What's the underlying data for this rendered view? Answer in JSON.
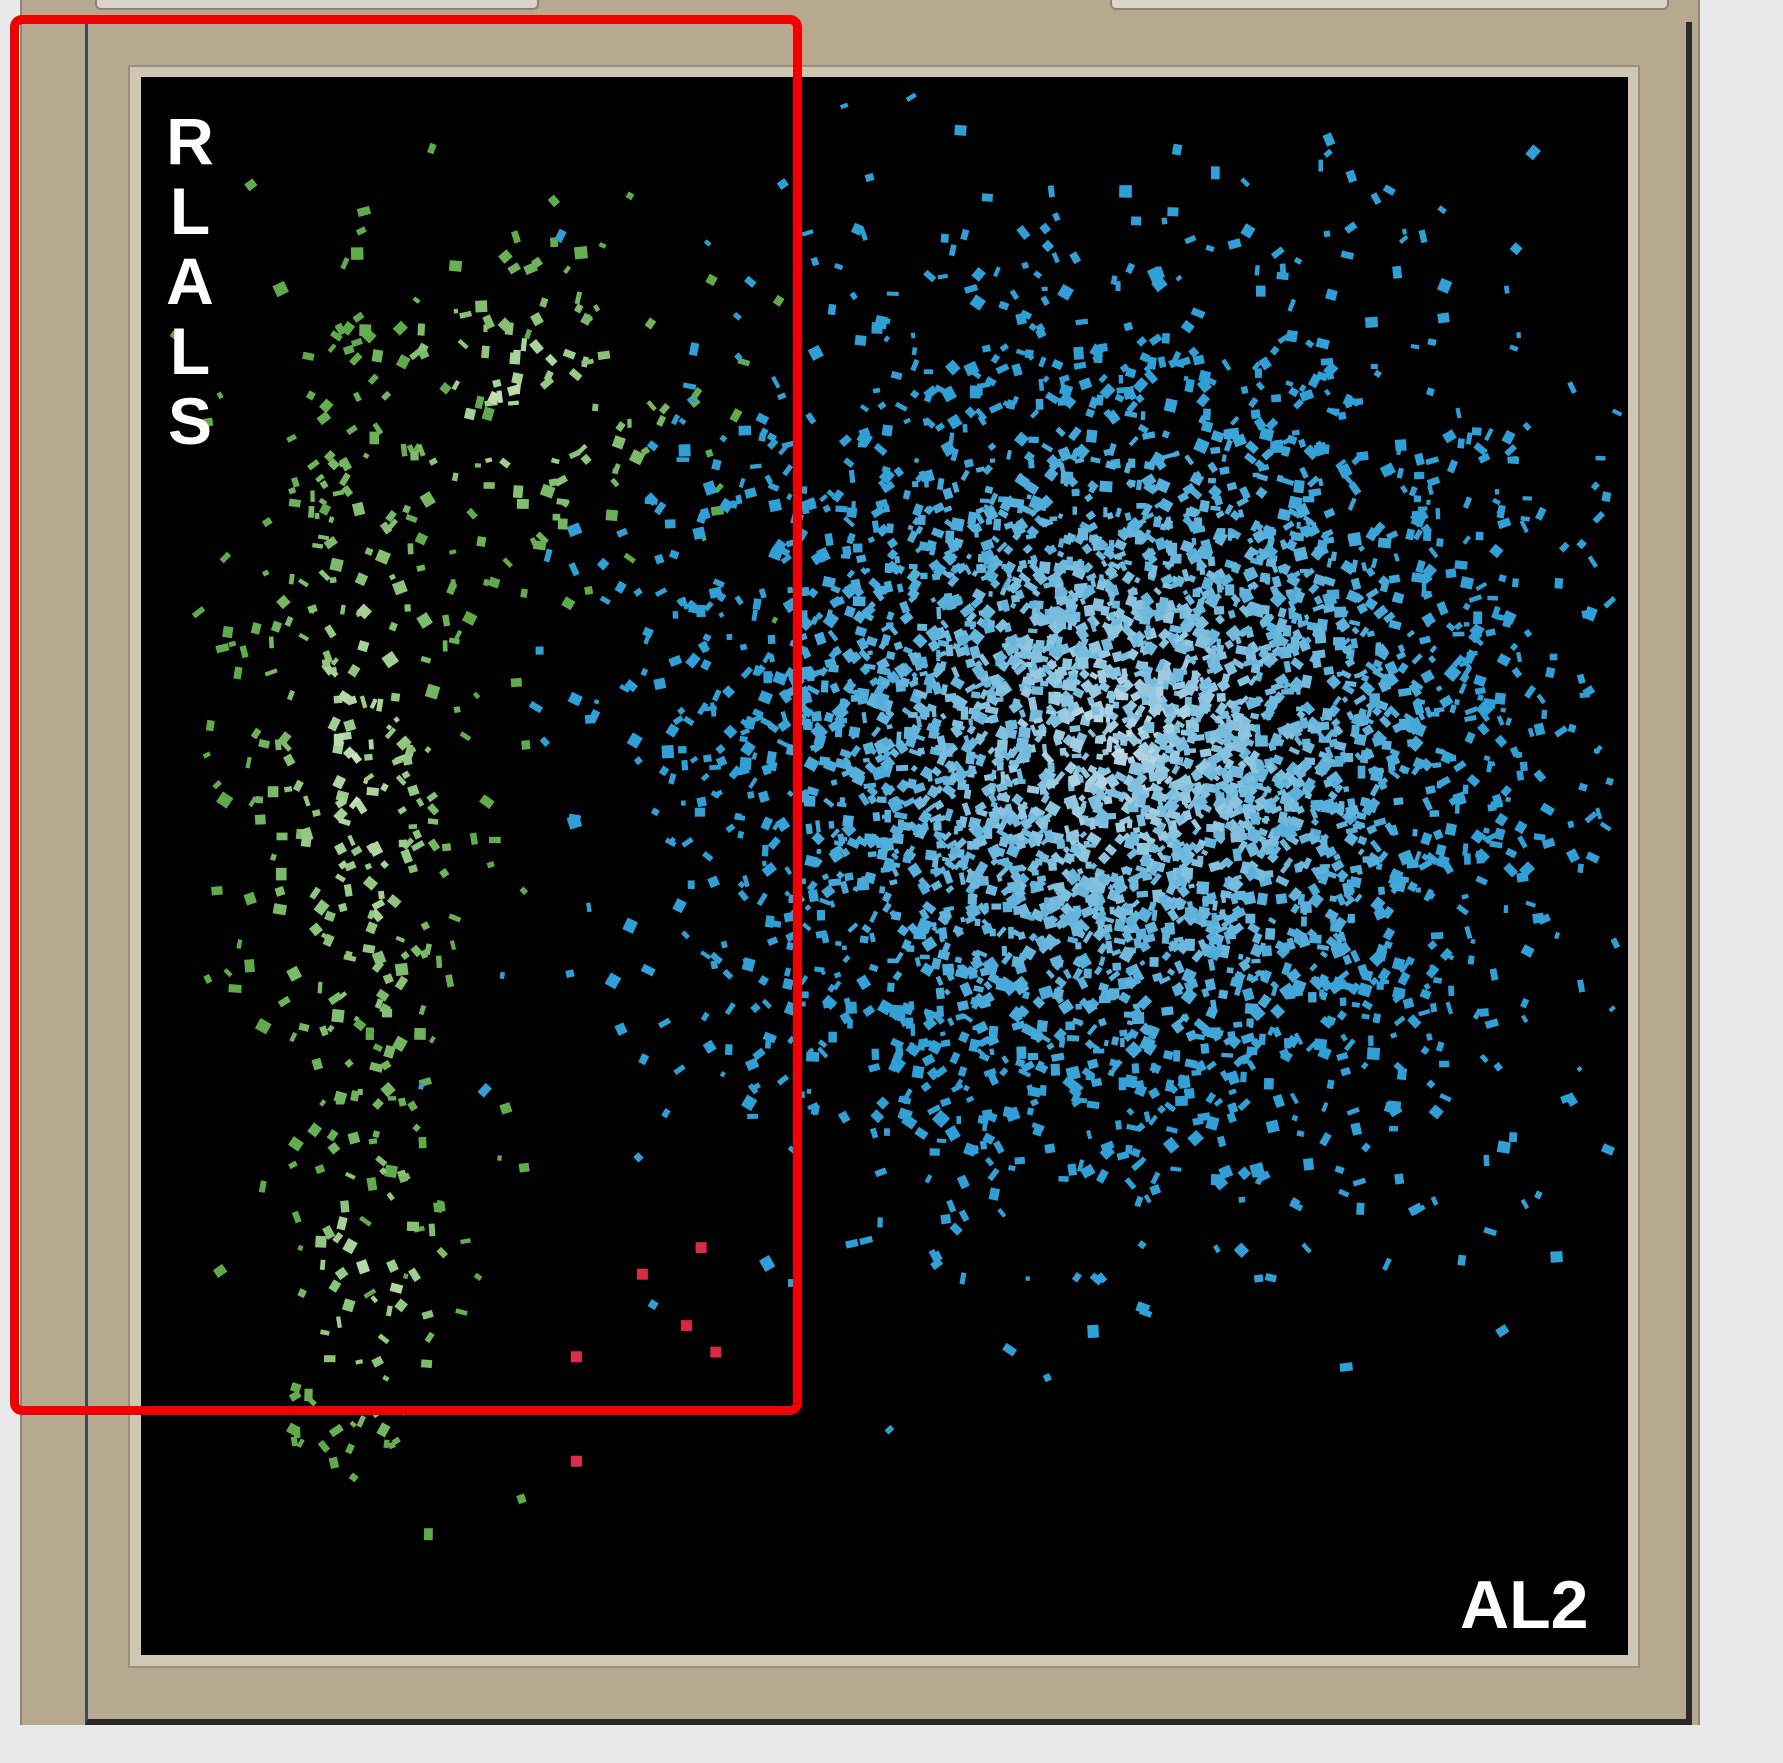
{
  "window": {
    "frame_color": "#b7a98f",
    "plot_background": "#000000"
  },
  "highlight": {
    "color": "#ff0000"
  },
  "chart_data": {
    "type": "scatter",
    "title": "",
    "xlabel": "AL2",
    "ylabel": "RLALS",
    "ylabel_letters": [
      "R",
      "L",
      "A",
      "L",
      "S"
    ],
    "xlim": [
      0,
      100
    ],
    "ylim": [
      0,
      100
    ],
    "grid": false,
    "legend": "none",
    "series": [
      {
        "color": "#5faa4a",
        "highlight_color": "#cfe8c4",
        "count": 520,
        "clusters": [
          {
            "x_center": 14,
            "y_center": 56,
            "x_spread": 4.5,
            "y_spread": 15,
            "weight": 0.62
          },
          {
            "x_center": 25,
            "y_center": 80,
            "x_spread": 7,
            "y_spread": 6,
            "weight": 0.24
          },
          {
            "x_center": 15,
            "y_center": 24,
            "x_spread": 4,
            "y_spread": 7,
            "weight": 0.14
          }
        ]
      },
      {
        "color": "#2f9fd6",
        "highlight_color": "#c9dde6",
        "count": 4200,
        "clusters": [
          {
            "x_center": 66,
            "y_center": 58,
            "x_spread": 14,
            "y_spread": 13,
            "weight": 1.0
          }
        ]
      },
      {
        "color": "#c8102e",
        "highlight_color": "#e43a55",
        "points": [
          {
            "x": 33.5,
            "y": 23.8
          },
          {
            "x": 37.5,
            "y": 25.5
          },
          {
            "x": 38.5,
            "y": 18.8
          },
          {
            "x": 36.5,
            "y": 20.5
          },
          {
            "x": 29.0,
            "y": 18.5
          },
          {
            "x": 29.0,
            "y": 11.8
          }
        ]
      }
    ]
  }
}
